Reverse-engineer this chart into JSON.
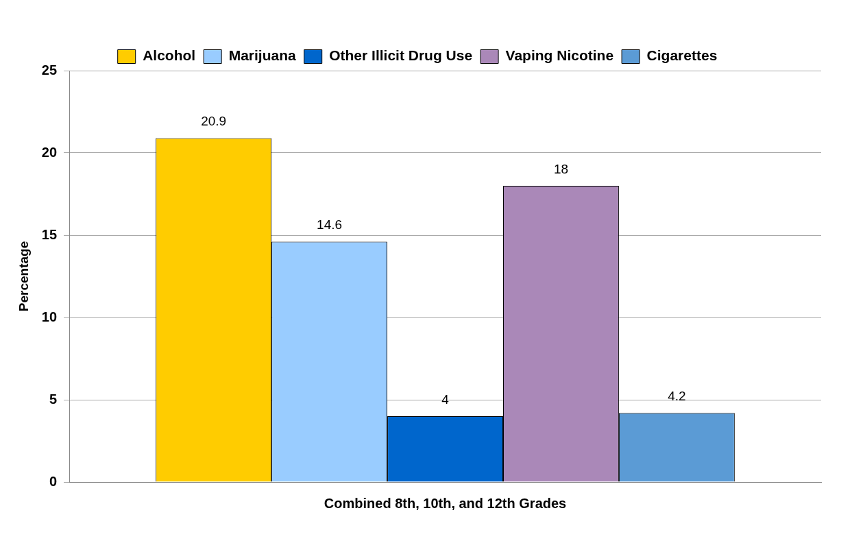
{
  "chart_data": {
    "type": "bar",
    "ylabel": "Percentage",
    "categories": [
      "Combined 8th, 10th, and 12th Grades"
    ],
    "series": [
      {
        "name": "Alcohol",
        "color": "#ffcc00",
        "values": [
          20.9
        ]
      },
      {
        "name": "Marijuana",
        "color": "#99ccff",
        "values": [
          14.6
        ]
      },
      {
        "name": "Other Illicit Drug Use",
        "color": "#0066cc",
        "values": [
          4
        ]
      },
      {
        "name": "Vaping Nicotine",
        "color": "#aa88b8",
        "values": [
          18
        ]
      },
      {
        "name": "Cigarettes",
        "color": "#5b9bd5",
        "values": [
          4.2
        ]
      }
    ],
    "ylim": [
      0,
      25
    ],
    "yticks": [
      0,
      5,
      10,
      15,
      20,
      25
    ],
    "grid": "y",
    "legend": "top",
    "data_labels": true
  }
}
